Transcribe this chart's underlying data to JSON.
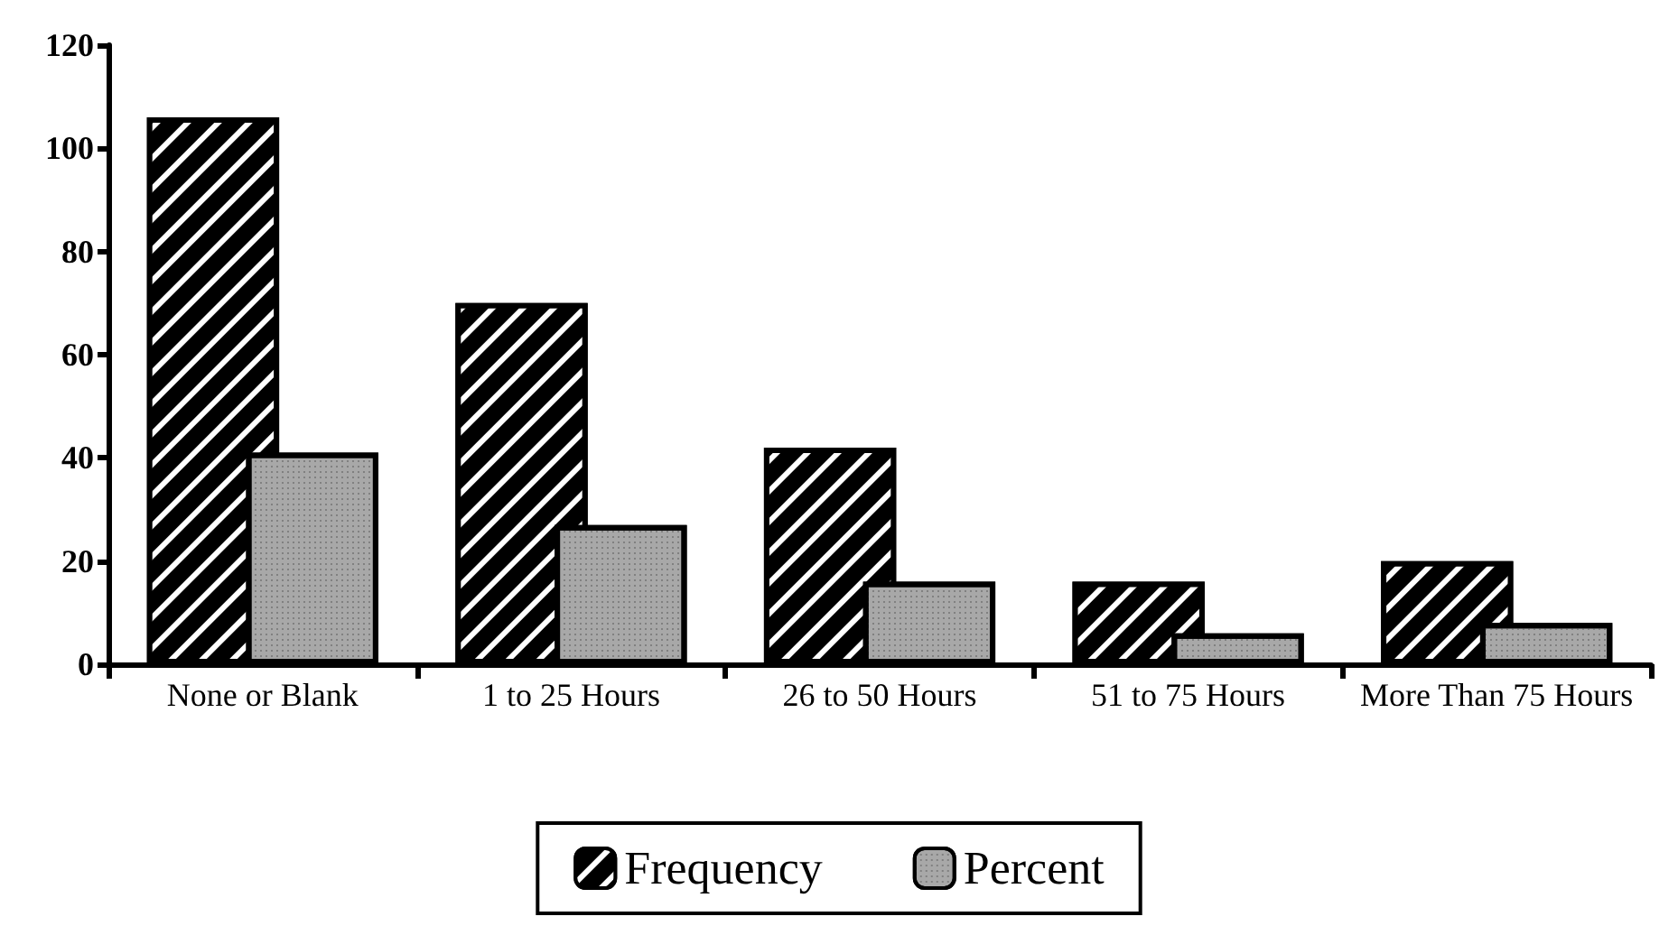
{
  "chart_data": {
    "type": "bar",
    "categories": [
      "None or Blank",
      "1 to 25 Hours",
      "26 to 50 Hours",
      "51 to 75 Hours",
      "More Than 75 Hours"
    ],
    "series": [
      {
        "name": "Frequency",
        "color": "#000000",
        "values": [
          106,
          70,
          42,
          16,
          20
        ]
      },
      {
        "name": "Percent",
        "color": "#a8a8a8",
        "values": [
          41,
          27,
          16,
          6,
          8
        ]
      }
    ],
    "ylim": [
      0,
      120
    ],
    "yticks": [
      0,
      20,
      40,
      60,
      80,
      100,
      120
    ],
    "grid": false,
    "legend": "bottom"
  }
}
